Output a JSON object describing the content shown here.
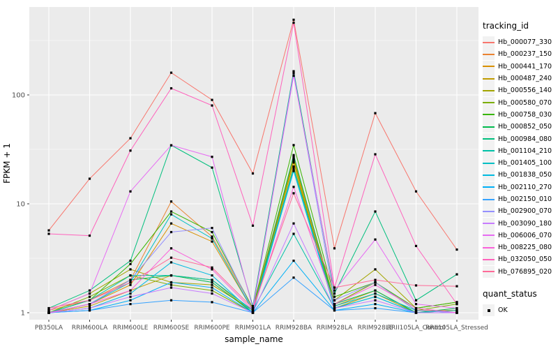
{
  "chart_data": {
    "type": "line",
    "title": "",
    "xlabel": "sample_name",
    "ylabel": "FPKM + 1",
    "y_scale": "log10",
    "y_ticks": [
      1,
      10,
      100
    ],
    "ylim": [
      0.87,
      640
    ],
    "grid": true,
    "legend_position": "right",
    "marker": "small black square (quant_status = OK)",
    "categories": [
      "PB350LA",
      "RRIM600LA",
      "RRIM600LE",
      "RRIM600SE",
      "RRIM600PE",
      "RRIM901LA",
      "RRIM928BA",
      "RRIM928LA",
      "RRIM928LE",
      "RRII105LA_Control",
      "RRII105LA_Stressed"
    ],
    "series": [
      {
        "name": "Hb_000077_330",
        "color": "#F8766D",
        "values": [
          5.7,
          17,
          40,
          160,
          90,
          19,
          490,
          3.9,
          68,
          13,
          3.8
        ]
      },
      {
        "name": "Hb_000237_150",
        "color": "#EA8331",
        "values": [
          1.05,
          1.3,
          2.0,
          10.5,
          5.0,
          1.1,
          27,
          1.2,
          1.9,
          1.05,
          1.05
        ]
      },
      {
        "name": "Hb_000441_170",
        "color": "#D89000",
        "values": [
          1.0,
          1.2,
          1.8,
          6.6,
          4.5,
          1.05,
          25,
          1.15,
          1.6,
          1.0,
          1.0
        ]
      },
      {
        "name": "Hb_000487_240",
        "color": "#C09B00",
        "values": [
          1.0,
          1.15,
          1.6,
          2.2,
          2.0,
          1.0,
          24,
          1.1,
          1.5,
          1.0,
          1.05
        ]
      },
      {
        "name": "Hb_000556_140",
        "color": "#A3A500",
        "values": [
          1.05,
          1.5,
          2.5,
          1.9,
          1.8,
          1.05,
          26,
          1.3,
          2.5,
          1.1,
          1.25
        ]
      },
      {
        "name": "Hb_000580_070",
        "color": "#7CAE00",
        "values": [
          1.0,
          1.4,
          2.2,
          1.8,
          1.6,
          1.0,
          22,
          1.2,
          1.9,
          1.05,
          1.2
        ]
      },
      {
        "name": "Hb_000758_030",
        "color": "#39B600",
        "values": [
          1.0,
          1.3,
          2.8,
          8.5,
          5.5,
          1.1,
          34.6,
          1.4,
          1.9,
          1.1,
          1.25
        ]
      },
      {
        "name": "Hb_000852_050",
        "color": "#00BB4E",
        "values": [
          1.0,
          1.2,
          2.0,
          2.2,
          1.9,
          1.0,
          28,
          1.2,
          1.6,
          1.0,
          1.1
        ]
      },
      {
        "name": "Hb_000984_080",
        "color": "#00BF7D",
        "values": [
          1.1,
          1.6,
          3.0,
          34.5,
          21.5,
          1.15,
          165,
          1.5,
          8.5,
          1.3,
          2.25
        ]
      },
      {
        "name": "Hb_001104_210",
        "color": "#00C1A7",
        "values": [
          1.0,
          1.3,
          2.2,
          2.2,
          2.0,
          1.05,
          5.3,
          1.1,
          1.4,
          1.0,
          1.05
        ]
      },
      {
        "name": "Hb_001405_100",
        "color": "#00BFC4",
        "values": [
          1.0,
          1.2,
          1.9,
          8.0,
          4.8,
          1.05,
          21,
          1.15,
          1.5,
          1.05,
          1.0
        ]
      },
      {
        "name": "Hb_001838_050",
        "color": "#00BAE0",
        "values": [
          1.0,
          1.1,
          1.5,
          2.9,
          2.2,
          1.0,
          20,
          1.1,
          1.4,
          1.0,
          1.0
        ]
      },
      {
        "name": "Hb_002110_270",
        "color": "#00B0F6",
        "values": [
          1.0,
          1.05,
          1.3,
          1.9,
          1.7,
          1.0,
          3.0,
          1.05,
          1.2,
          1.0,
          1.0
        ]
      },
      {
        "name": "Hb_002150_010",
        "color": "#35A2FF",
        "values": [
          1.0,
          1.05,
          1.2,
          1.3,
          1.25,
          1.0,
          2.1,
          1.05,
          1.1,
          1.0,
          1.0
        ]
      },
      {
        "name": "Hb_002900_070",
        "color": "#9590FF",
        "values": [
          1.0,
          1.2,
          2.0,
          5.5,
          6.0,
          1.05,
          158,
          1.3,
          1.9,
          1.05,
          1.0
        ]
      },
      {
        "name": "Hb_003090_180",
        "color": "#C77CFF",
        "values": [
          1.0,
          1.1,
          1.4,
          1.7,
          1.5,
          1.0,
          6.6,
          1.1,
          1.3,
          1.0,
          1.0
        ]
      },
      {
        "name": "Hb_006006_070",
        "color": "#E76BF3",
        "values": [
          1.05,
          1.5,
          13,
          34.5,
          27,
          1.1,
          150,
          1.6,
          4.7,
          1.2,
          1.1
        ]
      },
      {
        "name": "Hb_008225_080",
        "color": "#FA62DB",
        "values": [
          1.0,
          1.2,
          1.6,
          3.9,
          2.5,
          1.05,
          14.3,
          1.2,
          1.8,
          1.1,
          1.0
        ]
      },
      {
        "name": "Hb_032050_050",
        "color": "#FF62BC",
        "values": [
          5.3,
          5.1,
          30.8,
          115,
          80,
          6.3,
          460,
          1.7,
          28.5,
          4.1,
          1.2
        ]
      },
      {
        "name": "Hb_076895_020",
        "color": "#FF6A98",
        "values": [
          1.1,
          1.3,
          1.9,
          3.2,
          2.6,
          1.1,
          12.5,
          1.7,
          2.0,
          1.78,
          1.75
        ]
      }
    ]
  },
  "legend": {
    "tracking_title": "tracking_id",
    "quant_title": "quant_status",
    "quant_ok_label": "OK"
  },
  "theme": {
    "panel_bg": "#EBEBEB",
    "grid_color": "#FFFFFF",
    "tick_label_color": "#4D4D4D",
    "tick_mark_color": "#333333",
    "marker_color": "#000000"
  }
}
